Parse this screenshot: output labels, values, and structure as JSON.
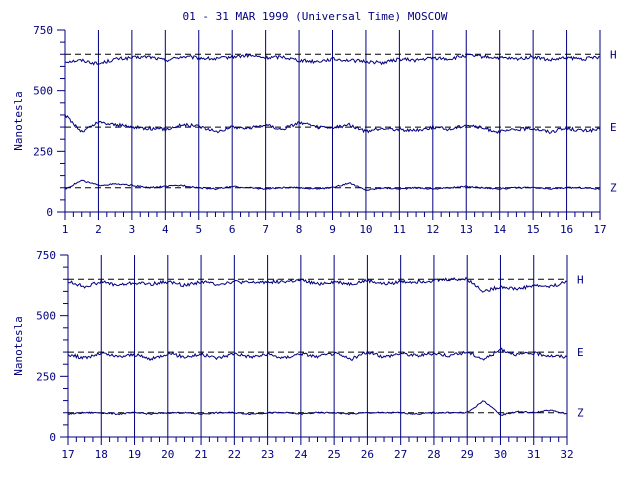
{
  "title": "01 - 31 MAR 1999 (Universal Time) MOSCOW",
  "colors": {
    "axis": "#000080",
    "trace": "#000080",
    "baseline": "#000000",
    "background": "#ffffff"
  },
  "chart_data": [
    {
      "type": "line",
      "title": "01 - 31 MAR 1999 (Universal Time) MOSCOW",
      "ylabel": "Nanotesla",
      "ylim": [
        0,
        750
      ],
      "yticks": [
        0,
        250,
        500,
        750
      ],
      "xlim": [
        1,
        17
      ],
      "xticks": [
        1,
        2,
        3,
        4,
        5,
        6,
        7,
        8,
        9,
        10,
        11,
        12,
        13,
        14,
        15,
        16,
        17
      ],
      "grid": "vertical lines at day boundaries",
      "baselines": [
        650,
        350,
        100
      ],
      "series": [
        {
          "name": "H",
          "baseline": 650,
          "x": [
            1.0,
            1.5,
            2.0,
            2.5,
            3.0,
            3.5,
            4.0,
            4.5,
            5.0,
            5.5,
            6.0,
            6.5,
            7.0,
            7.5,
            8.0,
            8.5,
            9.0,
            9.5,
            10.0,
            10.5,
            11.0,
            11.5,
            12.0,
            12.5,
            13.0,
            13.5,
            14.0,
            14.5,
            15.0,
            15.5,
            16.0,
            16.5,
            17.0
          ],
          "values": [
            620,
            625,
            610,
            630,
            635,
            640,
            625,
            640,
            635,
            630,
            640,
            645,
            635,
            640,
            625,
            620,
            630,
            625,
            620,
            615,
            630,
            625,
            635,
            630,
            645,
            640,
            635,
            630,
            640,
            625,
            635,
            630,
            640
          ]
        },
        {
          "name": "E",
          "baseline": 350,
          "x": [
            1.0,
            1.5,
            2.0,
            2.5,
            3.0,
            3.5,
            4.0,
            4.5,
            5.0,
            5.5,
            6.0,
            6.5,
            7.0,
            7.5,
            8.0,
            8.5,
            9.0,
            9.5,
            10.0,
            10.5,
            11.0,
            11.5,
            12.0,
            12.5,
            13.0,
            13.5,
            14.0,
            14.5,
            15.0,
            15.5,
            16.0,
            16.5,
            17.0
          ],
          "values": [
            400,
            330,
            370,
            360,
            350,
            345,
            340,
            360,
            355,
            330,
            350,
            345,
            360,
            340,
            370,
            350,
            345,
            360,
            330,
            345,
            340,
            335,
            350,
            340,
            360,
            345,
            330,
            340,
            345,
            330,
            345,
            335,
            340
          ]
        },
        {
          "name": "Z",
          "baseline": 100,
          "x": [
            1.0,
            1.5,
            2.0,
            2.5,
            3.0,
            3.5,
            4.0,
            4.5,
            5.0,
            5.5,
            6.0,
            6.5,
            7.0,
            7.5,
            8.0,
            8.5,
            9.0,
            9.5,
            10.0,
            10.5,
            11.0,
            11.5,
            12.0,
            12.5,
            13.0,
            13.5,
            14.0,
            14.5,
            15.0,
            15.5,
            16.0,
            16.5,
            17.0
          ],
          "values": [
            95,
            130,
            110,
            115,
            110,
            100,
            105,
            110,
            100,
            95,
            105,
            100,
            95,
            100,
            100,
            95,
            100,
            120,
            90,
            100,
            95,
            100,
            95,
            100,
            105,
            100,
            95,
            100,
            100,
            95,
            100,
            100,
            95
          ]
        }
      ]
    },
    {
      "type": "line",
      "title": "",
      "ylabel": "Nanotesla",
      "ylim": [
        0,
        750
      ],
      "yticks": [
        0,
        250,
        500,
        750
      ],
      "xlim": [
        17,
        32
      ],
      "xticks": [
        17,
        18,
        19,
        20,
        21,
        22,
        23,
        24,
        25,
        26,
        27,
        28,
        29,
        30,
        31,
        32
      ],
      "grid": "vertical lines at day boundaries",
      "baselines": [
        650,
        350,
        100
      ],
      "series": [
        {
          "name": "H",
          "baseline": 650,
          "x": [
            17.0,
            17.5,
            18.0,
            18.5,
            19.0,
            19.5,
            20.0,
            20.5,
            21.0,
            21.5,
            22.0,
            22.5,
            23.0,
            23.5,
            24.0,
            24.5,
            25.0,
            25.5,
            26.0,
            26.5,
            27.0,
            27.5,
            28.0,
            28.5,
            29.0,
            29.5,
            30.0,
            30.5,
            31.0,
            31.5,
            32.0
          ],
          "values": [
            640,
            620,
            640,
            625,
            635,
            630,
            640,
            625,
            640,
            630,
            640,
            635,
            640,
            640,
            645,
            630,
            640,
            630,
            645,
            630,
            640,
            640,
            645,
            650,
            650,
            600,
            620,
            610,
            625,
            620,
            640
          ]
        },
        {
          "name": "E",
          "baseline": 350,
          "x": [
            17.0,
            17.5,
            18.0,
            18.5,
            19.0,
            19.5,
            20.0,
            20.5,
            21.0,
            21.5,
            22.0,
            22.5,
            23.0,
            23.5,
            24.0,
            24.5,
            25.0,
            25.5,
            26.0,
            26.5,
            27.0,
            27.5,
            28.0,
            28.5,
            29.0,
            29.5,
            30.0,
            30.5,
            31.0,
            31.5,
            32.0
          ],
          "values": [
            340,
            325,
            345,
            330,
            340,
            320,
            345,
            330,
            340,
            325,
            345,
            330,
            340,
            325,
            345,
            330,
            345,
            320,
            350,
            330,
            345,
            335,
            345,
            335,
            350,
            320,
            360,
            340,
            345,
            335,
            330
          ]
        },
        {
          "name": "Z",
          "baseline": 100,
          "x": [
            17.0,
            17.5,
            18.0,
            18.5,
            19.0,
            19.5,
            20.0,
            20.5,
            21.0,
            21.5,
            22.0,
            22.5,
            23.0,
            23.5,
            24.0,
            24.5,
            25.0,
            25.5,
            26.0,
            26.5,
            27.0,
            27.5,
            28.0,
            28.5,
            29.0,
            29.5,
            30.0,
            30.5,
            31.0,
            31.5,
            32.0
          ],
          "values": [
            95,
            100,
            100,
            95,
            100,
            95,
            100,
            100,
            95,
            100,
            100,
            95,
            100,
            100,
            95,
            100,
            100,
            95,
            100,
            100,
            100,
            95,
            100,
            100,
            100,
            150,
            90,
            105,
            100,
            110,
            95
          ]
        }
      ]
    }
  ]
}
